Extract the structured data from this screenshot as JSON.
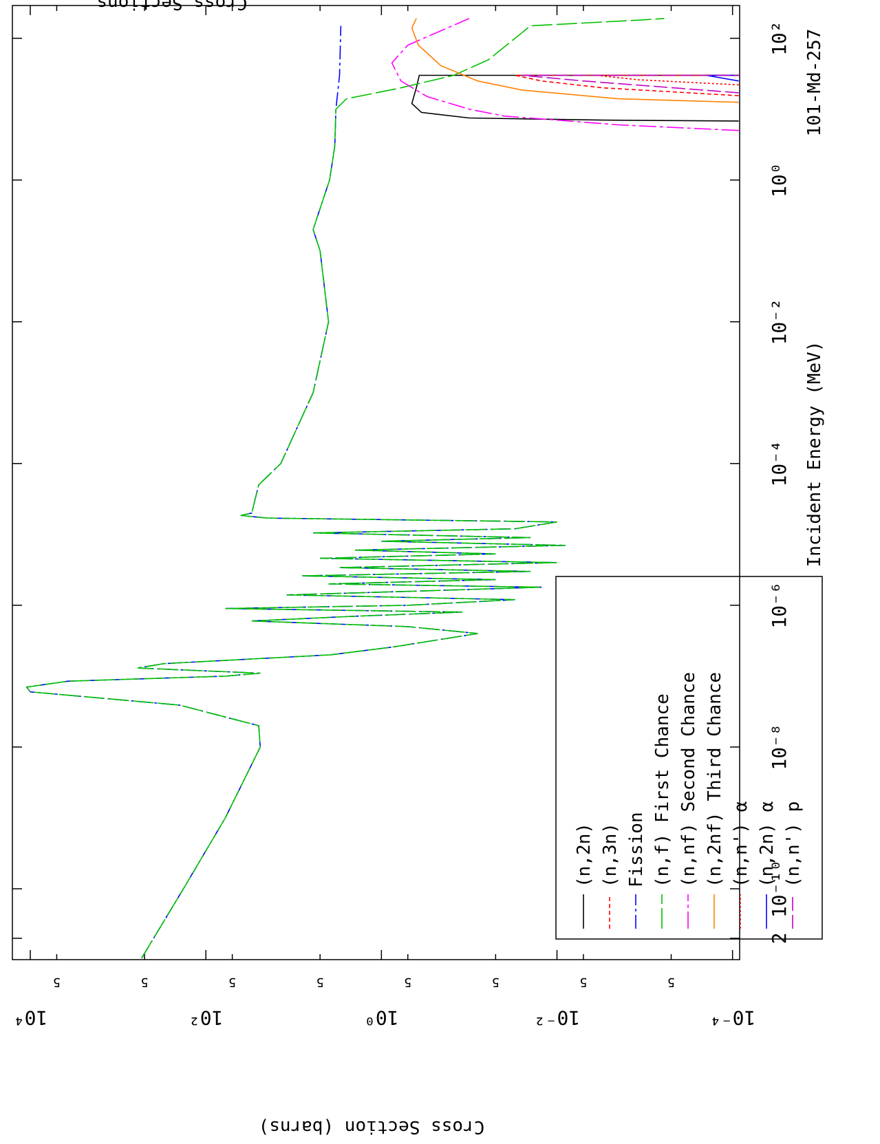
{
  "chart_data": {
    "type": "line",
    "title": "Cross Sections",
    "subtitle": "101-Md-257",
    "x_label": "Incident Energy (MeV)",
    "y_label": "Cross Section (barns)",
    "xscale": "log",
    "yscale": "log",
    "xlim": [
      1e-11,
      290
    ],
    "ylim": [
      8.3e-05,
      16000
    ],
    "xticks": [
      {
        "value": 2e-11,
        "label": "2"
      },
      {
        "value": 1e-10,
        "label": "10⁻¹⁰"
      },
      {
        "value": 1e-08,
        "label": "10⁻⁸"
      },
      {
        "value": 1e-06,
        "label": "10⁻⁶"
      },
      {
        "value": 0.0001,
        "label": "10⁻⁴"
      },
      {
        "value": 0.01,
        "label": "10⁻²"
      },
      {
        "value": 1,
        "label": "10⁰"
      },
      {
        "value": 100,
        "label": "10²"
      }
    ],
    "yticks": [
      {
        "value": 10000,
        "label": "10⁴"
      },
      {
        "value": 5000,
        "label": "5"
      },
      {
        "value": 500,
        "label": "5"
      },
      {
        "value": 100,
        "label": "10²"
      },
      {
        "value": 50,
        "label": "5"
      },
      {
        "value": 5,
        "label": "5"
      },
      {
        "value": 1,
        "label": "10⁰"
      },
      {
        "value": 0.5,
        "label": "5"
      },
      {
        "value": 0.05,
        "label": "5"
      },
      {
        "value": 0.01,
        "label": "10⁻²"
      },
      {
        "value": 0.005,
        "label": "5"
      },
      {
        "value": 0.0005,
        "label": "5"
      },
      {
        "value": 0.0001,
        "label": "10⁻⁴"
      }
    ],
    "series": [
      {
        "name": "(n,2n)",
        "color": "#000000",
        "dash": "none",
        "x": [
          6.8,
          7,
          7.5,
          9,
          12,
          20,
          30,
          30
        ],
        "values": [
          8.5e-05,
          0.003,
          0.1,
          0.35,
          0.45,
          0.4,
          0.37,
          8.5e-05
        ]
      },
      {
        "name": "(n,3n)",
        "color": "#ff0000",
        "dash": "6,4",
        "x": [
          15.5,
          20,
          25,
          30,
          30
        ],
        "values": [
          8.5e-05,
          0.003,
          0.015,
          0.03,
          8.5e-05
        ]
      },
      {
        "name": "Fission",
        "color": "#0000ff",
        "dash": "20,5,4,5",
        "x": [
          1.05e-11,
          1e-10,
          1e-09,
          1e-08,
          2e-08,
          3.9e-08,
          6e-08,
          7e-08,
          8.5e-08,
          1e-07,
          1.1e-07,
          1.3e-07,
          1.5e-07,
          2e-07,
          2.6e-07,
          4e-07,
          5e-07,
          6e-07,
          7e-07,
          8e-07,
          9e-07,
          1e-06,
          1.2e-06,
          1.4e-06,
          1.6e-06,
          1.8e-06,
          2e-06,
          2.3e-06,
          2.6e-06,
          3e-06,
          3.4e-06,
          4e-06,
          4.6e-06,
          5.3e-06,
          6e-06,
          7e-06,
          8e-06,
          9e-06,
          1.05e-05,
          1.2e-05,
          1.5e-05,
          1.7e-05,
          1.85e-05,
          2e-05,
          5e-05,
          0.0001,
          0.001,
          0.01,
          0.1,
          0.2,
          1,
          3,
          10,
          30,
          150
        ],
        "values": [
          540,
          180,
          60,
          24,
          25,
          200,
          10000,
          11000,
          3700,
          60,
          24,
          600,
          300,
          3.8,
          0.7,
          0.08,
          0.5,
          30,
          2,
          0.12,
          60,
          0.5,
          0.03,
          12,
          0.3,
          0.015,
          4,
          0.05,
          8,
          0.02,
          3,
          0.01,
          5,
          0.05,
          2,
          0.008,
          1,
          0.02,
          6,
          0.03,
          0.01,
          20,
          40,
          30,
          25,
          14,
          6,
          4,
          5,
          6,
          3.9,
          3.4,
          3.3,
          3,
          2.9
        ]
      },
      {
        "name": "(n,f) First Chance",
        "color": "#00c000",
        "dash": "30,6",
        "x": [
          1.05e-11,
          1e-10,
          1e-09,
          1e-08,
          2e-08,
          3.9e-08,
          6e-08,
          7e-08,
          8.5e-08,
          1e-07,
          1.1e-07,
          1.3e-07,
          1.5e-07,
          2e-07,
          2.6e-07,
          4e-07,
          5e-07,
          6e-07,
          7e-07,
          8e-07,
          9e-07,
          1e-06,
          1.2e-06,
          1.4e-06,
          1.6e-06,
          1.8e-06,
          2e-06,
          2.3e-06,
          2.6e-06,
          3e-06,
          3.4e-06,
          4e-06,
          4.6e-06,
          5.3e-06,
          6e-06,
          7e-06,
          8e-06,
          9e-06,
          1.05e-05,
          1.2e-05,
          1.5e-05,
          1.7e-05,
          1.85e-05,
          2e-05,
          5e-05,
          0.0001,
          0.001,
          0.01,
          0.1,
          0.2,
          1,
          3,
          10,
          14,
          20,
          30,
          50,
          100,
          150,
          180,
          190
        ],
        "values": [
          540,
          180,
          60,
          24,
          25,
          200,
          10000,
          11000,
          3700,
          60,
          24,
          600,
          300,
          3.8,
          0.7,
          0.08,
          0.5,
          30,
          2,
          0.12,
          60,
          0.5,
          0.03,
          12,
          0.3,
          0.015,
          4,
          0.05,
          8,
          0.02,
          3,
          0.01,
          5,
          0.05,
          2,
          0.008,
          1,
          0.02,
          6,
          0.03,
          0.01,
          20,
          40,
          30,
          25,
          14,
          6,
          4,
          5,
          6,
          3.9,
          3.4,
          3.3,
          2.5,
          0.6,
          0.15,
          0.06,
          0.03,
          0.02,
          0.0012,
          0.0006
        ]
      },
      {
        "name": "(n,nf) Second Chance",
        "color": "#ff00ff",
        "dash": "25,5,5,5",
        "x": [
          5,
          6,
          7,
          8,
          10,
          15,
          25,
          45,
          80,
          190
        ],
        "values": [
          8.5e-05,
          0.002,
          0.01,
          0.04,
          0.1,
          0.3,
          0.6,
          0.76,
          0.5,
          0.1
        ]
      },
      {
        "name": "(n,2nf) Third Chance",
        "color": "#ff8000",
        "dash": "none",
        "x": [
          12.5,
          14,
          18.6,
          25,
          41,
          80,
          140,
          190
        ],
        "values": [
          8.5e-05,
          0.002,
          0.025,
          0.08,
          0.21,
          0.38,
          0.45,
          0.4
        ]
      },
      {
        "name": "(n,n') α",
        "color": "#ff0000",
        "dash": "3,3",
        "x": [
          22,
          26,
          30,
          30
        ],
        "values": [
          8.5e-05,
          0.0012,
          0.0035,
          8.5e-05
        ]
      },
      {
        "name": "(n,2n) α",
        "color": "#0000ff",
        "dash": "none",
        "x": [
          25,
          30,
          30
        ],
        "values": [
          8.5e-05,
          0.0002,
          8.5e-05
        ]
      },
      {
        "name": "(n,n') p",
        "color": "#c000c0",
        "dash": "20,6",
        "x": [
          17,
          25,
          30,
          30
        ],
        "values": [
          8.5e-05,
          0.005,
          0.025,
          8.5e-05
        ]
      }
    ]
  }
}
